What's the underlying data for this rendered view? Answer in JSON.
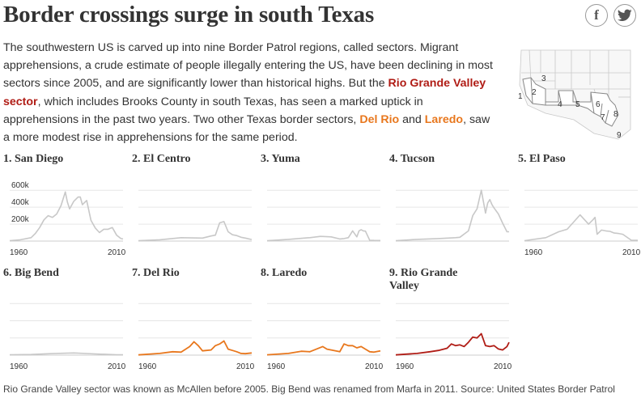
{
  "header": {
    "title": "Border crossings surge in south Texas",
    "share_facebook": "f"
  },
  "intro": {
    "t1": "The southwestern US is carved up into nine Border Patrol regions, called sectors. Migrant apprehensions, a crude estimate of people illegally entering the US, have been declining in most sectors since 2005, and are significantly lower than historical highs. But the ",
    "link_rgv": "Rio Grande Valley sector",
    "t2": ", which includes Brooks County in south Texas, has seen a marked uptick in apprehensions in the past two years. Two other Texas border sectors, ",
    "link_delrio": "Del Rio",
    "t3": " and ",
    "link_laredo": "Laredo",
    "t4": ", saw a more modest rise in apprehensions for the same period."
  },
  "map": {
    "labels": [
      "1",
      "2",
      "3",
      "4",
      "5",
      "6",
      "7",
      "8",
      "9"
    ]
  },
  "footer": {
    "note": "Rio Grande Valley sector was known as McAllen before 2005. Big Bend was renamed from Marfa in 2011. Source: United States Border Patrol"
  },
  "colors": {
    "gray_line": "#c8c8c8",
    "orange_line": "#e8771d",
    "red_line": "#b01c15",
    "gridline": "#e6e6e6",
    "baseline": "#cccccc",
    "text": "#333333"
  },
  "chart_data": [
    {
      "type": "line",
      "title": "1. San Diego",
      "color": "gray",
      "show_yaxis": true,
      "yticks": [
        "200k",
        "400k",
        "600k"
      ],
      "ylim": [
        0,
        650000
      ],
      "xticks": [
        "1960",
        "2010"
      ],
      "x": [
        1960,
        1965,
        1970,
        1972,
        1974,
        1976,
        1978,
        1980,
        1982,
        1984,
        1986,
        1987,
        1988,
        1990,
        1992,
        1993,
        1994,
        1996,
        1998,
        2000,
        2002,
        2004,
        2006,
        2008,
        2010,
        2012,
        2013
      ],
      "y": [
        5000,
        15000,
        40000,
        90000,
        160000,
        250000,
        300000,
        280000,
        320000,
        420000,
        580000,
        460000,
        380000,
        470000,
        520000,
        520000,
        430000,
        480000,
        245000,
        155000,
        100000,
        140000,
        140000,
        160000,
        70000,
        30000,
        25000
      ]
    },
    {
      "type": "line",
      "title": "2. El Centro",
      "color": "gray",
      "show_yaxis": false,
      "ylim": [
        0,
        650000
      ],
      "xticks": [],
      "x": [
        1960,
        1970,
        1980,
        1990,
        1994,
        1996,
        1998,
        2000,
        2002,
        2004,
        2006,
        2008,
        2010,
        2013
      ],
      "y": [
        5000,
        15000,
        40000,
        35000,
        60000,
        70000,
        215000,
        230000,
        110000,
        75000,
        65000,
        45000,
        35000,
        18000
      ]
    },
    {
      "type": "line",
      "title": "3. Yuma",
      "color": "gray",
      "show_yaxis": false,
      "ylim": [
        0,
        650000
      ],
      "xticks": [],
      "x": [
        1960,
        1970,
        1980,
        1985,
        1990,
        1994,
        1996,
        1998,
        2000,
        2002,
        2003,
        2004,
        2005,
        2006,
        2008,
        2010,
        2013
      ],
      "y": [
        4000,
        20000,
        40000,
        55000,
        50000,
        25000,
        30000,
        40000,
        120000,
        50000,
        120000,
        135000,
        120000,
        118000,
        10000,
        8000,
        7000
      ]
    },
    {
      "type": "line",
      "title": "4. Tucson",
      "color": "gray",
      "show_yaxis": false,
      "ylim": [
        0,
        650000
      ],
      "xticks": [],
      "x": [
        1960,
        1970,
        1980,
        1988,
        1990,
        1994,
        1996,
        1998,
        2000,
        2002,
        2003,
        2004,
        2005,
        2006,
        2008,
        2010,
        2012,
        2013
      ],
      "y": [
        5000,
        20000,
        30000,
        40000,
        45000,
        120000,
        300000,
        380000,
        600000,
        330000,
        450000,
        490000,
        430000,
        390000,
        320000,
        210000,
        110000,
        110000
      ]
    },
    {
      "type": "line",
      "title": "5. El Paso",
      "color": "gray",
      "show_yaxis": false,
      "ylim": [
        0,
        650000
      ],
      "xticks": [
        "1960",
        "2010"
      ],
      "x": [
        1960,
        1970,
        1976,
        1980,
        1986,
        1990,
        1992,
        1993,
        1994,
        1996,
        1998,
        2000,
        2002,
        2004,
        2006,
        2010,
        2013
      ],
      "y": [
        5000,
        40000,
        110000,
        140000,
        310000,
        200000,
        250000,
        280000,
        80000,
        130000,
        120000,
        115000,
        95000,
        90000,
        80000,
        10000,
        10000
      ]
    },
    {
      "type": "line",
      "title": "6. Big Bend",
      "color": "gray",
      "show_yaxis": false,
      "ylim": [
        0,
        650000
      ],
      "xticks": [
        "1960",
        "2010"
      ],
      "x": [
        1960,
        1970,
        1980,
        1990,
        2000,
        2010,
        2013
      ],
      "y": [
        4000,
        8000,
        18000,
        25000,
        14000,
        5000,
        4000
      ]
    },
    {
      "type": "line",
      "title": "7. Del Rio",
      "color": "orange",
      "show_yaxis": false,
      "ylim": [
        0,
        650000
      ],
      "xticks": [
        "1960",
        "2010"
      ],
      "x": [
        1960,
        1970,
        1976,
        1980,
        1984,
        1986,
        1988,
        1990,
        1994,
        1996,
        1998,
        2000,
        2002,
        2004,
        2006,
        2008,
        2010,
        2013
      ],
      "y": [
        3000,
        20000,
        40000,
        35000,
        100000,
        155000,
        110000,
        50000,
        60000,
        110000,
        130000,
        165000,
        70000,
        55000,
        40000,
        20000,
        17000,
        25000
      ]
    },
    {
      "type": "line",
      "title": "8. Laredo",
      "color": "orange",
      "show_yaxis": false,
      "ylim": [
        0,
        650000
      ],
      "xticks": [
        "1960",
        "2010"
      ],
      "x": [
        1960,
        1970,
        1976,
        1980,
        1986,
        1988,
        1990,
        1994,
        1996,
        1998,
        2000,
        2002,
        2004,
        2006,
        2008,
        2010,
        2013
      ],
      "y": [
        4000,
        20000,
        45000,
        40000,
        100000,
        70000,
        60000,
        40000,
        130000,
        110000,
        110000,
        85000,
        100000,
        70000,
        40000,
        35000,
        50000
      ]
    },
    {
      "type": "line",
      "title": "9. Rio Grande Valley",
      "color": "red",
      "show_yaxis": false,
      "ylim": [
        0,
        650000
      ],
      "xticks": [
        "1960",
        "2010"
      ],
      "x": [
        1960,
        1970,
        1976,
        1980,
        1984,
        1986,
        1988,
        1990,
        1992,
        1994,
        1996,
        1998,
        2000,
        2002,
        2004,
        2006,
        2008,
        2010,
        2012,
        2013
      ],
      "y": [
        3000,
        20000,
        40000,
        55000,
        80000,
        130000,
        110000,
        120000,
        100000,
        150000,
        210000,
        200000,
        250000,
        110000,
        100000,
        110000,
        72000,
        60000,
        100000,
        150000
      ]
    }
  ]
}
